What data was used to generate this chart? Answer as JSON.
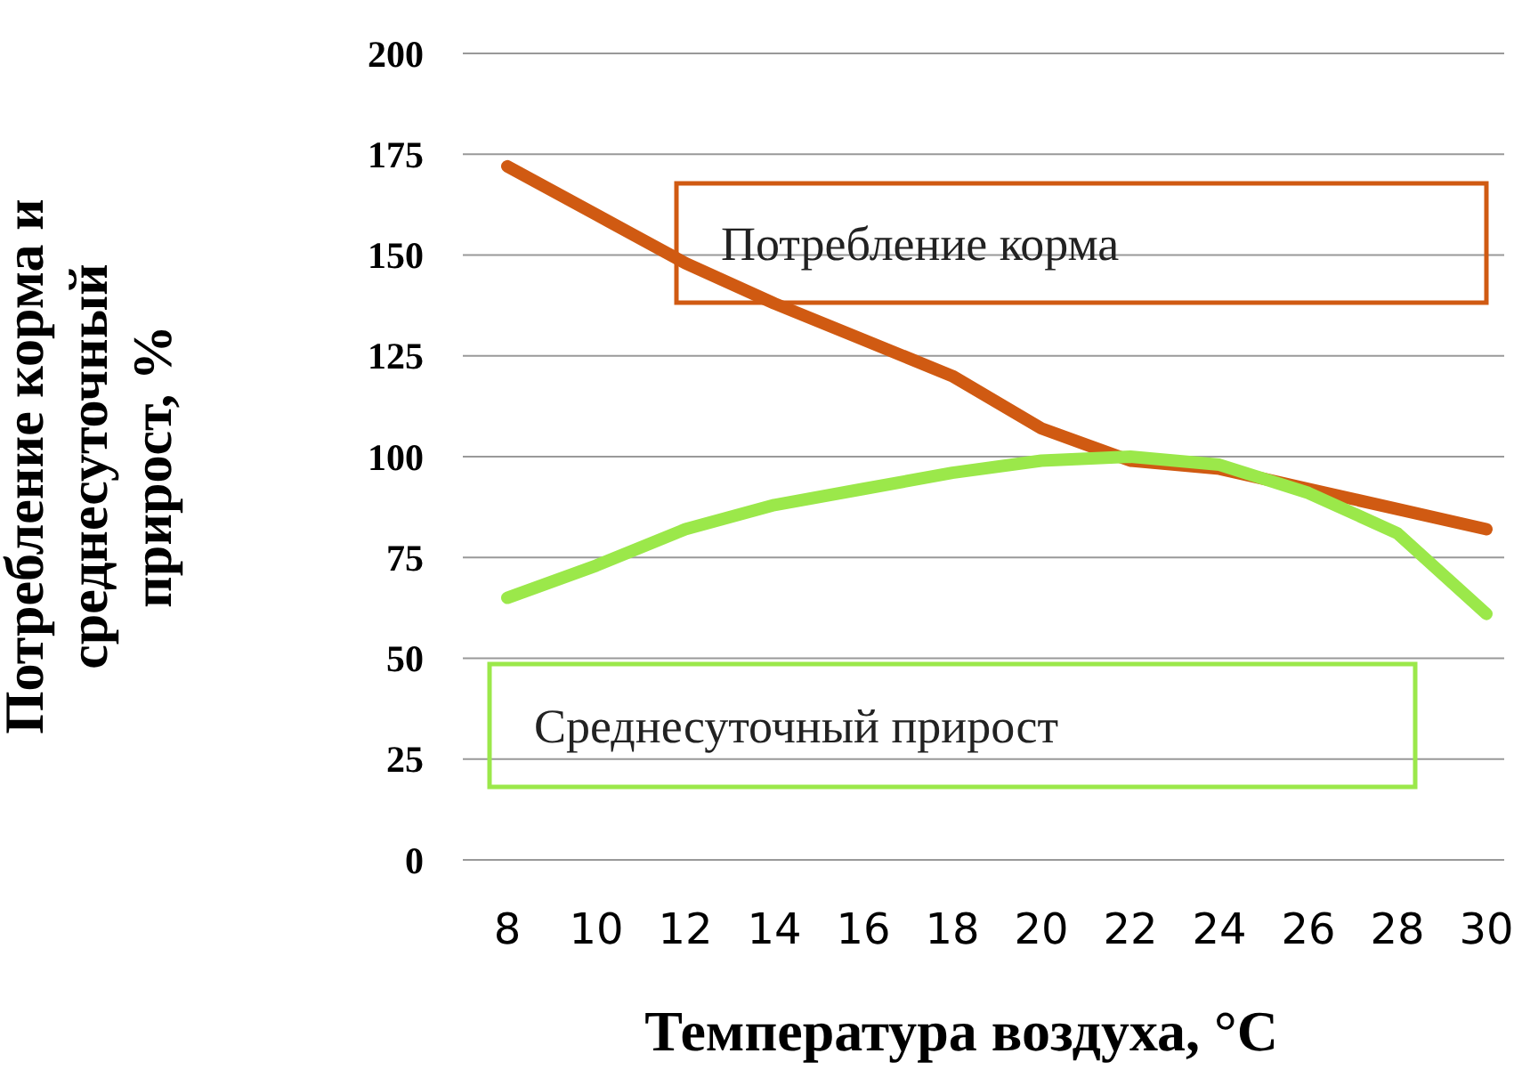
{
  "chart_data": {
    "type": "line",
    "xlabel": "Температура воздуха, °С",
    "ylabel": "Потребление корма и среднесуточный прирост, %",
    "categories": [
      "8",
      "10",
      "12",
      "14",
      "16",
      "18",
      "20",
      "22",
      "24",
      "26",
      "28",
      "30"
    ],
    "series": [
      {
        "name": "Потребление корма",
        "color": "#d05a12",
        "values": [
          172,
          160,
          148,
          138,
          129,
          120,
          107,
          99,
          97,
          92,
          87,
          82
        ]
      },
      {
        "name": "Среднесуточный прирост",
        "color": "#9be84a",
        "values": [
          65,
          73,
          82,
          88,
          92,
          96,
          99,
          100,
          98,
          91,
          81,
          61
        ]
      }
    ],
    "ylim": [
      0,
      200
    ],
    "yticks": [
      0,
      25,
      50,
      75,
      100,
      125,
      150,
      175,
      200
    ],
    "grid": "y",
    "legend": "center",
    "marker": "none",
    "line_style": "solid"
  }
}
